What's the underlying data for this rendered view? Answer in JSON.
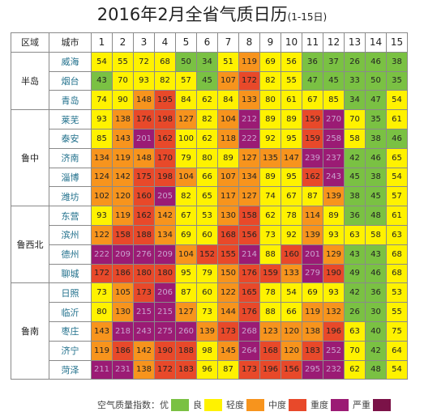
{
  "title": {
    "main": "2016年2月全省气质日历",
    "sub": "(1-15日)"
  },
  "header": {
    "region": "区域",
    "city": "城市"
  },
  "legend": {
    "label": "空气质量指数：",
    "items": [
      {
        "label": "优",
        "color": "#7ac143"
      },
      {
        "label": "良",
        "color": "#fff200"
      },
      {
        "label": "轻度",
        "color": "#f7941d"
      },
      {
        "label": "中度",
        "color": "#e8492a"
      },
      {
        "label": "重度",
        "color": "#9b1b74"
      },
      {
        "label": "严重",
        "color": "#7b1248"
      }
    ]
  },
  "chart_data": {
    "type": "heatmap",
    "days": [
      "1",
      "2",
      "3",
      "4",
      "5",
      "6",
      "7",
      "8",
      "9",
      "10",
      "11",
      "12",
      "13",
      "14",
      "15"
    ],
    "aqi_levels": [
      {
        "label": "优",
        "min": 0,
        "max": 50,
        "color": "#7ac143"
      },
      {
        "label": "良",
        "min": 51,
        "max": 100,
        "color": "#fff200"
      },
      {
        "label": "轻度",
        "min": 101,
        "max": 150,
        "color": "#f7941d"
      },
      {
        "label": "中度",
        "min": 151,
        "max": 200,
        "color": "#e8492a"
      },
      {
        "label": "重度",
        "min": 201,
        "max": 300,
        "color": "#9b1b74"
      },
      {
        "label": "严重",
        "min": 301,
        "max": 500,
        "color": "#7b1248"
      }
    ],
    "regions": [
      {
        "name": "半岛",
        "cities": [
          {
            "name": "威海",
            "values": [
              54,
              55,
              72,
              68,
              50,
              34,
              51,
              119,
              69,
              56,
              36,
              37,
              26,
              46,
              38
            ]
          },
          {
            "name": "烟台",
            "values": [
              43,
              70,
              93,
              82,
              57,
              45,
              107,
              172,
              82,
              55,
              47,
              45,
              33,
              50,
              35
            ]
          },
          {
            "name": "青岛",
            "values": [
              74,
              90,
              148,
              195,
              84,
              62,
              84,
              133,
              80,
              61,
              67,
              85,
              34,
              47,
              54
            ]
          }
        ]
      },
      {
        "name": "鲁中",
        "cities": [
          {
            "name": "莱芜",
            "values": [
              93,
              138,
              176,
              198,
              127,
              82,
              104,
              212,
              89,
              89,
              159,
              270,
              70,
              35,
              61
            ]
          },
          {
            "name": "泰安",
            "values": [
              85,
              143,
              201,
              162,
              100,
              62,
              118,
              222,
              92,
              95,
              159,
              258,
              58,
              38,
              46
            ]
          },
          {
            "name": "济南",
            "values": [
              134,
              119,
              148,
              170,
              79,
              80,
              89,
              127,
              135,
              147,
              239,
              237,
              42,
              46,
              65
            ]
          },
          {
            "name": "淄博",
            "values": [
              124,
              142,
              175,
              198,
              104,
              66,
              107,
              134,
              89,
              95,
              162,
              243,
              45,
              38,
              54
            ]
          },
          {
            "name": "潍坊",
            "values": [
              102,
              120,
              160,
              205,
              82,
              65,
              117,
              127,
              74,
              67,
              87,
              139,
              38,
              45,
              57
            ]
          }
        ]
      },
      {
        "name": "鲁西北",
        "cities": [
          {
            "name": "东营",
            "values": [
              93,
              119,
              162,
              142,
              67,
              53,
              130,
              158,
              62,
              78,
              114,
              89,
              36,
              48,
              61
            ]
          },
          {
            "name": "滨州",
            "values": [
              122,
              158,
              188,
              134,
              69,
              60,
              168,
              156,
              73,
              92,
              139,
              93,
              63,
              58,
              63
            ]
          },
          {
            "name": "德州",
            "values": [
              222,
              209,
              276,
              209,
              104,
              152,
              155,
              214,
              88,
              160,
              201,
              129,
              43,
              43,
              68
            ]
          },
          {
            "name": "聊城",
            "values": [
              172,
              186,
              180,
              180,
              95,
              79,
              150,
              176,
              159,
              133,
              279,
              190,
              49,
              46,
              68
            ]
          }
        ]
      },
      {
        "name": "鲁南",
        "cities": [
          {
            "name": "日照",
            "values": [
              73,
              105,
              173,
              206,
              87,
              60,
              122,
              165,
              78,
              54,
              69,
              93,
              42,
              36,
              53
            ]
          },
          {
            "name": "临沂",
            "values": [
              80,
              130,
              215,
              215,
              127,
              73,
              144,
              176,
              88,
              66,
              119,
              132,
              26,
              30,
              55
            ]
          },
          {
            "name": "枣庄",
            "values": [
              143,
              218,
              243,
              275,
              260,
              139,
              173,
              268,
              123,
              120,
              138,
              196,
              63,
              40,
              75
            ]
          },
          {
            "name": "济宁",
            "values": [
              119,
              186,
              142,
              190,
              188,
              98,
              145,
              264,
              168,
              120,
              183,
              252,
              70,
              42,
              64
            ]
          },
          {
            "name": "菏泽",
            "values": [
              211,
              231,
              138,
              172,
              183,
              96,
              87,
              173,
              196,
              156,
              295,
              232,
              62,
              48,
              54
            ]
          }
        ]
      }
    ]
  }
}
